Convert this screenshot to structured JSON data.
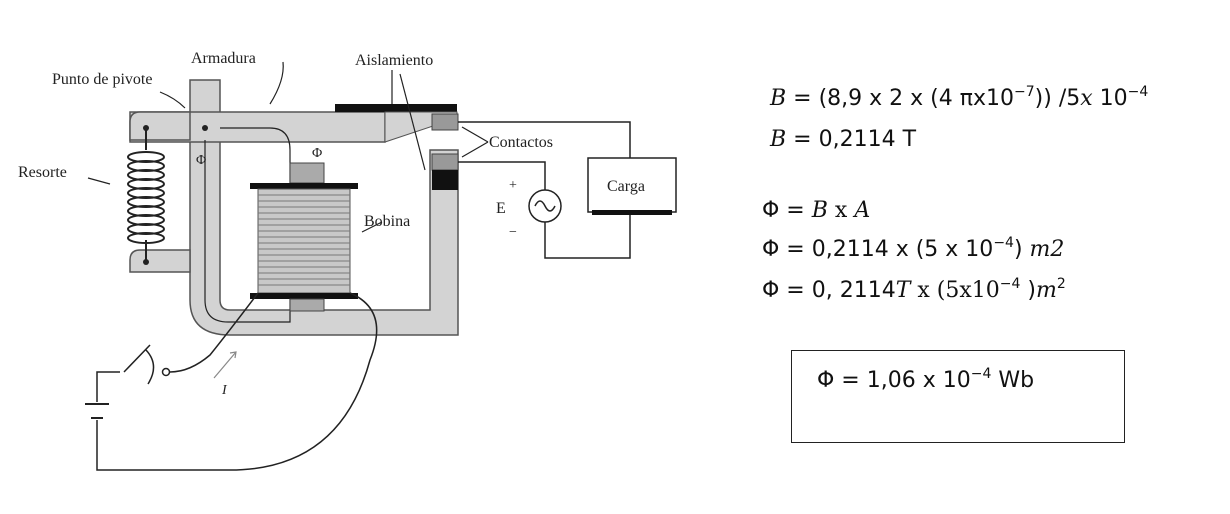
{
  "diagram": {
    "labels": {
      "armadura": "Armadura",
      "aislamiento": "Aislamiento",
      "punto_pivote": "Punto de pivote",
      "contactos": "Contactos",
      "resorte": "Resorte",
      "carga": "Carga",
      "bobina": "Bobina",
      "phi_left": "Φ",
      "phi_top": "Φ",
      "fuente_e": "E",
      "plus": "+",
      "minus": "−",
      "corriente": "I"
    }
  },
  "equations": {
    "eq1": {
      "lhs": "B",
      "rhs_a": " = (8,9 x 2 x (4 πx10",
      "exp1": "−7",
      "rhs_b": ")) /5",
      "x": "x",
      "rhs_c": " 10",
      "exp2": "−4"
    },
    "eq2": {
      "lhs": "B",
      "rhs": " = 0,2114 T"
    },
    "eq3": {
      "a": "Φ = ",
      "b": "B",
      "c": " x ",
      "d": "A"
    },
    "eq4": {
      "a": "Φ = 0,2114 x (5 x 10",
      "exp": "−4",
      "b": ") ",
      "unit": "m2"
    },
    "eq5": {
      "a": "Φ = 0, 2114",
      "t": "T",
      "b": " x (5x10",
      "exp": "−4",
      "c": " )",
      "m": "m",
      "exp2": "2"
    },
    "result": {
      "a": "Φ =  1,06 x 10",
      "exp": "−4",
      "b": " Wb"
    }
  }
}
